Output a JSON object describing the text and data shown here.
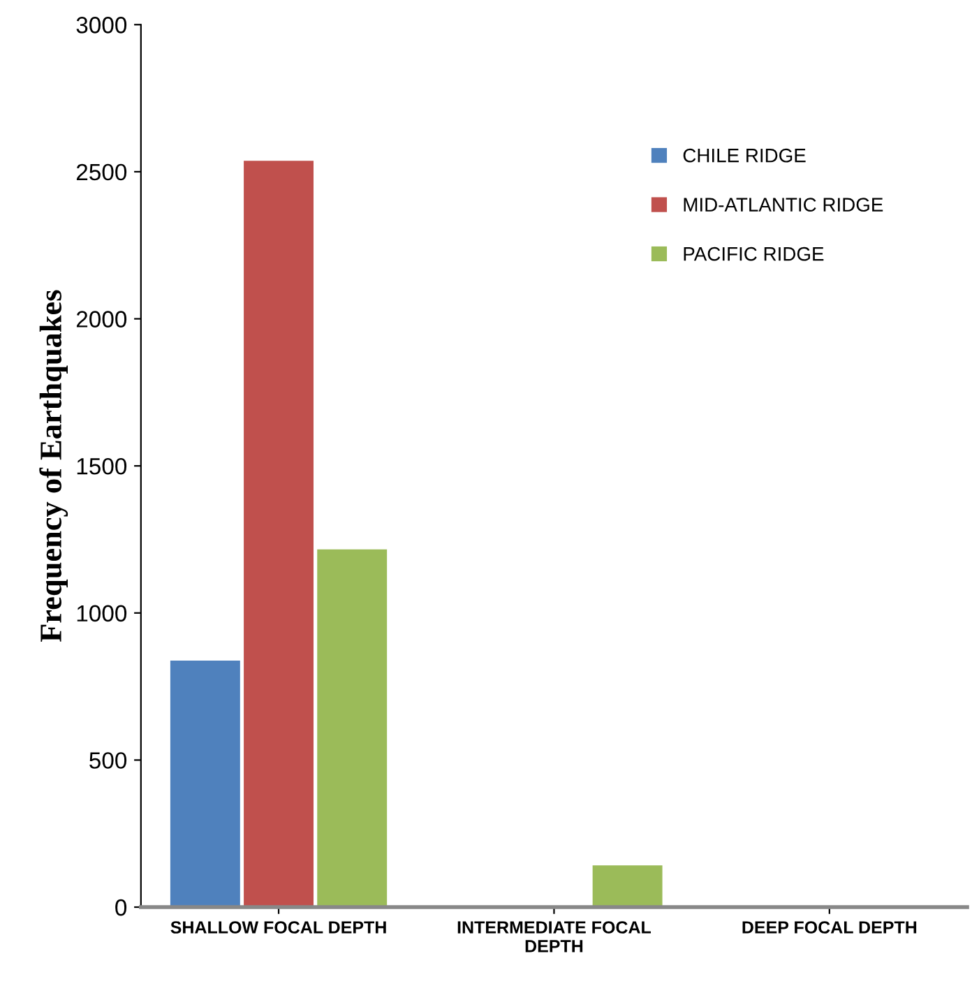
{
  "chart_data": {
    "type": "bar",
    "ylabel": "Frequency of Earthquakes",
    "categories": [
      "SHALLOW FOCAL DEPTH",
      "INTERMEDIATE FOCAL DEPTH",
      "DEEP FOCAL DEPTH"
    ],
    "series": [
      {
        "name": "CHILE RIDGE",
        "color": "#4f81bd",
        "values": [
          838,
          0,
          0
        ]
      },
      {
        "name": "MID-ATLANTIC RIDGE",
        "color": "#c0504d",
        "values": [
          2537,
          0,
          0
        ]
      },
      {
        "name": "PACIFIC RIDGE",
        "color": "#9bbb59",
        "values": [
          1216,
          142,
          5
        ]
      }
    ],
    "ylim": [
      0,
      3000
    ],
    "yticks": [
      0,
      500,
      1000,
      1500,
      2000,
      2500,
      3000
    ],
    "grid": false,
    "legend": "top right"
  }
}
